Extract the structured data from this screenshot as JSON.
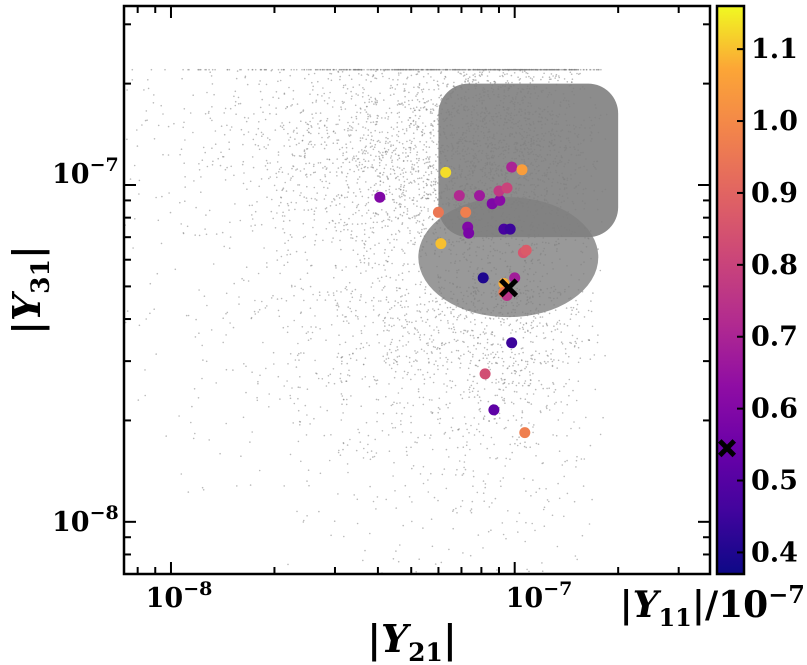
{
  "chart_data": {
    "type": "scatter",
    "xscale": "log",
    "yscale": "log",
    "xlabel": "|Y",
    "xlabel_sub": "21",
    "xlabel_end": "|",
    "ylabel": "|Y",
    "ylabel_sub": "31",
    "ylabel_end": "|",
    "xlim": [
      7.3e-09,
      3.7e-07
    ],
    "ylim": [
      7e-09,
      3.4e-07
    ],
    "xticks": [
      {
        "value": 1e-08,
        "base": "10",
        "exp": "−8"
      },
      {
        "value": 1e-07,
        "base": "10",
        "exp": "−7"
      }
    ],
    "yticks": [
      {
        "value": 1e-08,
        "base": "10",
        "exp": "−8"
      },
      {
        "value": 1e-07,
        "base": "10",
        "exp": "−7"
      }
    ],
    "background": {
      "color": "#808080",
      "description_points": "dense cloud of random parameter-scan points",
      "core_x_range": [
        6e-08,
        2e-07
      ],
      "core_y_range": [
        7e-08,
        2e-07
      ]
    },
    "colorbar": {
      "label_pre": "|Y",
      "label_sub": "11",
      "label_post": "|/10",
      "label_exp": "−7",
      "range": [
        0.37,
        1.16
      ],
      "ticks": [
        "0.4",
        "0.5",
        "0.6",
        "0.7",
        "0.8",
        "0.9",
        "1.0",
        "1.1"
      ],
      "tick_values": [
        0.4,
        0.5,
        0.6,
        0.7,
        0.8,
        0.9,
        1.0,
        1.1
      ],
      "colormap": "plasma",
      "marker_value": 0.545
    },
    "points": [
      {
        "x": 4.05e-08,
        "y": 9.2e-08,
        "c": 0.6
      },
      {
        "x": 6.3e-08,
        "y": 1.09e-07,
        "c": 1.13
      },
      {
        "x": 6e-08,
        "y": 8.3e-08,
        "c": 0.95
      },
      {
        "x": 6.1e-08,
        "y": 6.7e-08,
        "c": 1.1
      },
      {
        "x": 6.9e-08,
        "y": 9.3e-08,
        "c": 0.72
      },
      {
        "x": 7.2e-08,
        "y": 8.3e-08,
        "c": 0.97
      },
      {
        "x": 7.3e-08,
        "y": 7.5e-08,
        "c": 0.6
      },
      {
        "x": 7.35e-08,
        "y": 7.2e-08,
        "c": 0.58
      },
      {
        "x": 7.9e-08,
        "y": 9.3e-08,
        "c": 0.67
      },
      {
        "x": 8.6e-08,
        "y": 8.8e-08,
        "c": 0.59
      },
      {
        "x": 9.05e-08,
        "y": 9e-08,
        "c": 0.62
      },
      {
        "x": 9e-08,
        "y": 9.6e-08,
        "c": 0.77
      },
      {
        "x": 9.5e-08,
        "y": 9.8e-08,
        "c": 0.8
      },
      {
        "x": 9.8e-08,
        "y": 1.13e-07,
        "c": 0.7
      },
      {
        "x": 1.05e-07,
        "y": 1.11e-07,
        "c": 1.05
      },
      {
        "x": 9.3e-08,
        "y": 7.4e-08,
        "c": 0.47
      },
      {
        "x": 9.7e-08,
        "y": 7.4e-08,
        "c": 0.45
      },
      {
        "x": 1.06e-07,
        "y": 6.3e-08,
        "c": 0.85
      },
      {
        "x": 1.08e-07,
        "y": 6.4e-08,
        "c": 0.87
      },
      {
        "x": 8.1e-08,
        "y": 5.3e-08,
        "c": 0.4
      },
      {
        "x": 1e-07,
        "y": 5.3e-08,
        "c": 0.68
      },
      {
        "x": 9.3e-08,
        "y": 5.1e-08,
        "c": 1.08
      },
      {
        "x": 9.3e-08,
        "y": 4.8e-08,
        "c": 0.95
      },
      {
        "x": 9.5e-08,
        "y": 4.7e-08,
        "c": 0.75
      },
      {
        "x": 9.8e-08,
        "y": 3.4e-08,
        "c": 0.45
      },
      {
        "x": 8.2e-08,
        "y": 2.75e-08,
        "c": 0.83
      },
      {
        "x": 8.7e-08,
        "y": 2.15e-08,
        "c": 0.52
      },
      {
        "x": 1.07e-07,
        "y": 1.84e-08,
        "c": 0.97
      }
    ],
    "best_fit": {
      "x": 9.6e-08,
      "y": 4.95e-08,
      "marker": "X",
      "color": "#000000"
    }
  }
}
